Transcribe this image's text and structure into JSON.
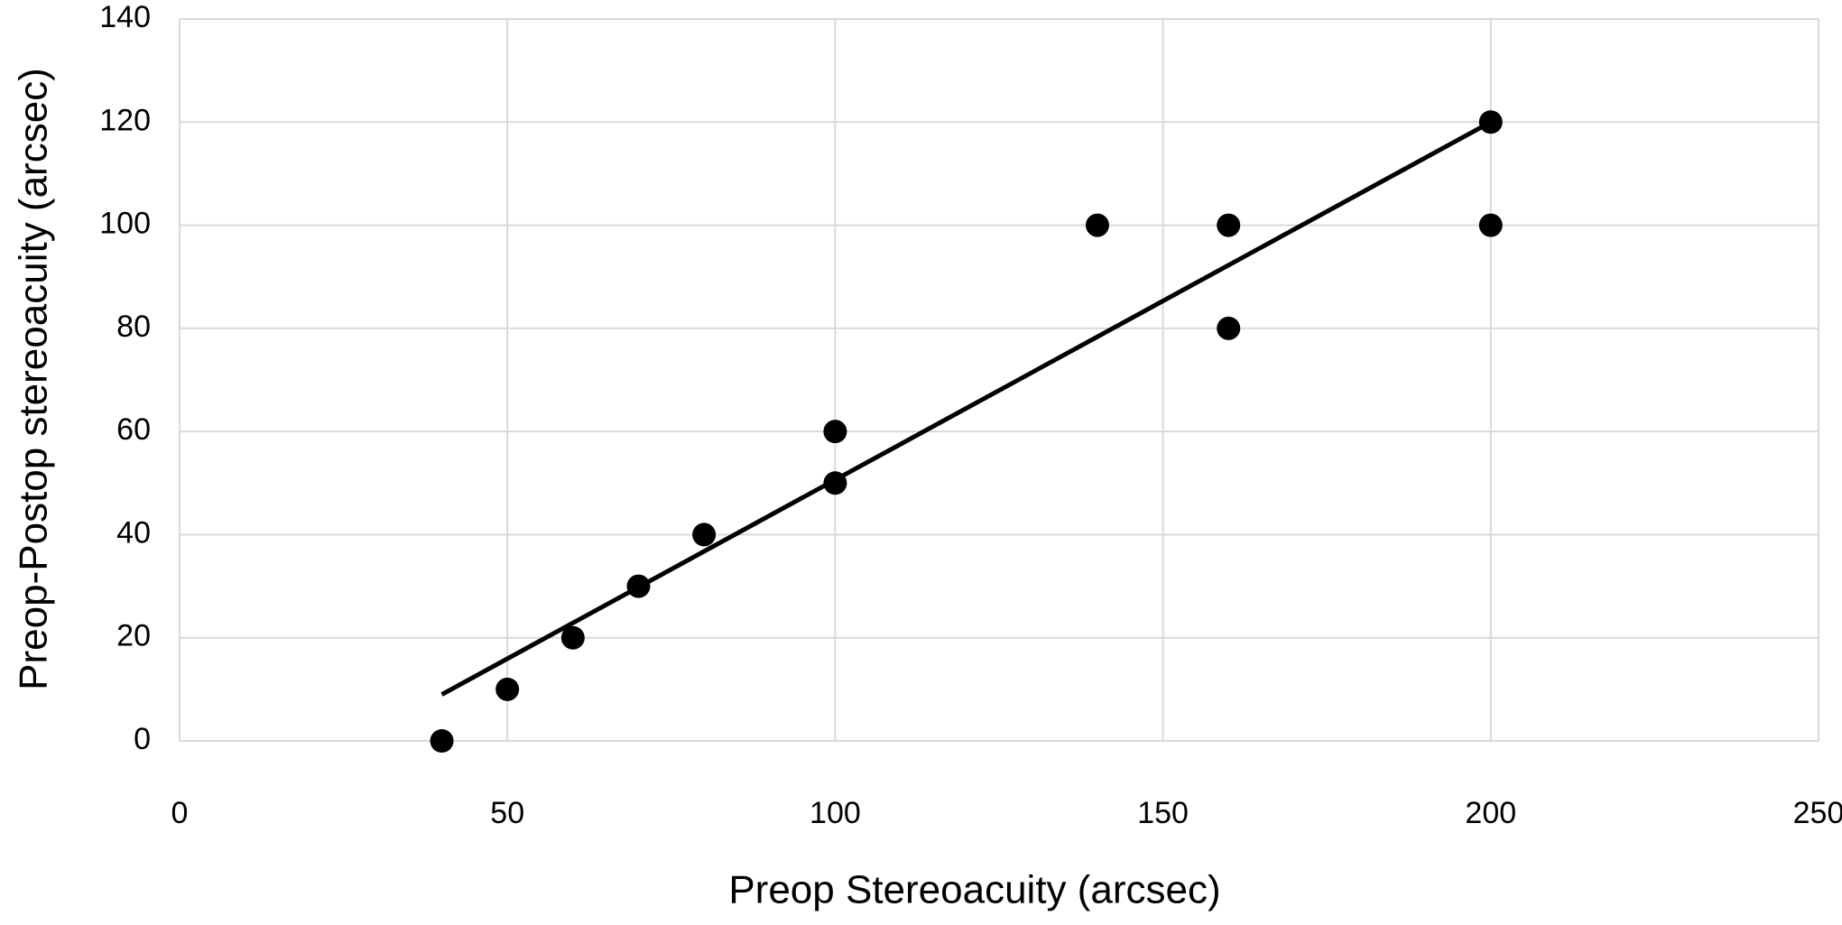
{
  "chart_data": {
    "type": "scatter",
    "x_label": "Preop Stereoacuity (arcsec)",
    "y_label": "Preop-Postop stereoacuity (arcsec)",
    "x": [
      40,
      50,
      60,
      70,
      80,
      100,
      100,
      140,
      160,
      160,
      200,
      200
    ],
    "values": [
      0,
      10,
      20,
      30,
      40,
      50,
      60,
      100,
      100,
      80,
      120,
      100
    ],
    "color": "#000000",
    "trendline": {
      "x": [
        40,
        200
      ],
      "values": [
        9,
        120
      ],
      "color": "#000000"
    },
    "xlim": [
      0,
      250
    ],
    "xticks": [
      0,
      50,
      100,
      150,
      200,
      250
    ],
    "ylim": [
      0,
      140
    ],
    "yticks": [
      0,
      20,
      40,
      60,
      80,
      100,
      120,
      140
    ],
    "grid": true
  }
}
